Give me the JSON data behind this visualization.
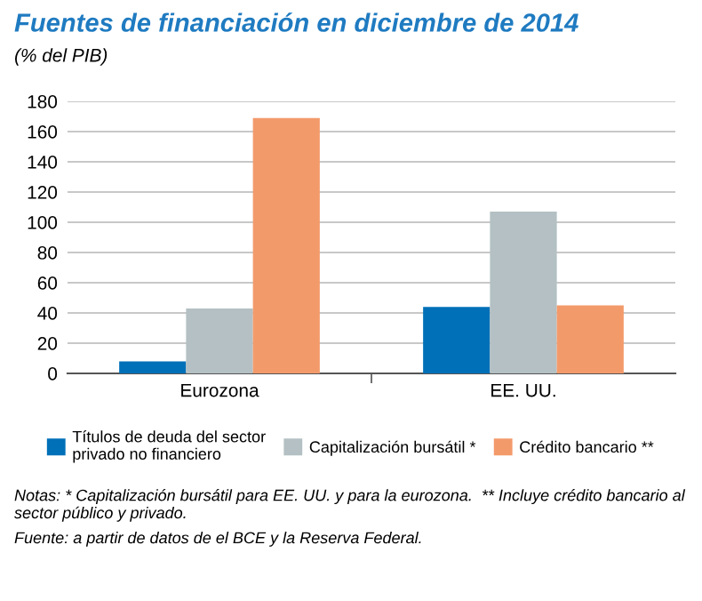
{
  "chart_data": {
    "type": "bar",
    "title": "Fuentes de financiación en diciembre de 2014",
    "subtitle": "(% del PIB)",
    "categories": [
      "Eurozona",
      "EE. UU."
    ],
    "series": [
      {
        "name": "Títulos de deuda del sector\nprivado no financiero",
        "color": "#0070b8",
        "values": [
          8,
          44
        ]
      },
      {
        "name": "Capitalización bursátil *",
        "color": "#b4c0c3",
        "values": [
          43,
          107
        ]
      },
      {
        "name": "Crédito bancario **",
        "color": "#f39a6b",
        "values": [
          169,
          45
        ]
      }
    ],
    "ylim": [
      0,
      180
    ],
    "yticks": [
      0,
      20,
      40,
      60,
      80,
      100,
      120,
      140,
      160,
      180
    ],
    "grid": "y",
    "legend": "bottom",
    "annotations": [
      "Notas: * Capitalización bursátil para EE. UU. y para la eurozona.  ** Incluye crédito bancario al sector público y privado.",
      "Fuente: a partir de datos de el BCE y la Reserva Federal."
    ]
  }
}
